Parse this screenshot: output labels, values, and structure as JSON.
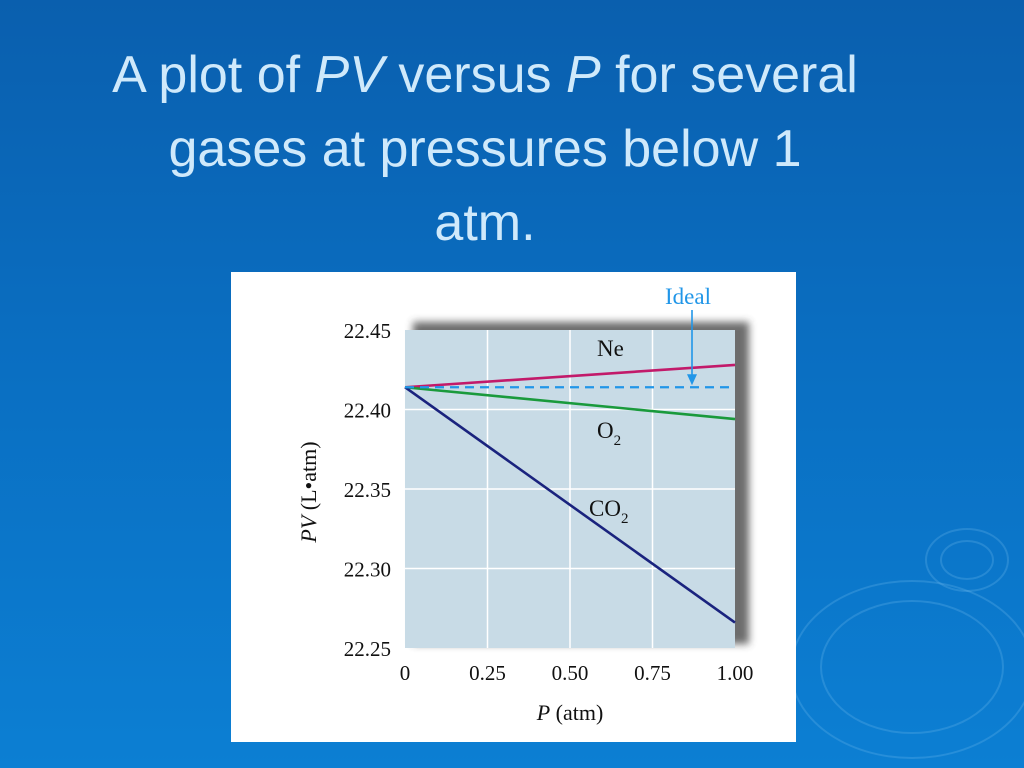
{
  "slide": {
    "title_line1_part1": "A plot of ",
    "title_line1_em1": "PV",
    "title_line1_part2": " versus ",
    "title_line1_em2": "P",
    "title_line1_part3": " for several",
    "title_line2": "gases at pressures below 1",
    "title_line3": "atm."
  },
  "chart_data": {
    "type": "line",
    "xlabel_italic": "P",
    "xlabel_unit": " (atm)",
    "ylabel_italic": "PV",
    "ylabel_unit": " (L•atm)",
    "xlim": [
      0,
      1.0
    ],
    "ylim": [
      22.25,
      22.45
    ],
    "x_ticks": [
      "0",
      "0.25",
      "0.50",
      "0.75",
      "1.00"
    ],
    "x_tick_values": [
      0,
      0.25,
      0.5,
      0.75,
      1.0
    ],
    "y_ticks": [
      "22.45",
      "22.40",
      "22.35",
      "22.30",
      "22.25"
    ],
    "y_tick_values": [
      22.45,
      22.4,
      22.35,
      22.3,
      22.25
    ],
    "grid": true,
    "series": [
      {
        "name": "Ne",
        "label_main": "Ne",
        "label_sub": "",
        "color": "#c21a6a",
        "x": [
          0,
          1.0
        ],
        "y": [
          22.414,
          22.428
        ],
        "dashed": false
      },
      {
        "name": "O2",
        "label_main": "O",
        "label_sub": "2",
        "color": "#1a9a3c",
        "x": [
          0,
          1.0
        ],
        "y": [
          22.414,
          22.394
        ],
        "dashed": false
      },
      {
        "name": "CO2",
        "label_main": "CO",
        "label_sub": "2",
        "color": "#1a237e",
        "x": [
          0,
          1.0
        ],
        "y": [
          22.414,
          22.266
        ],
        "dashed": false
      },
      {
        "name": "Ideal",
        "label_main": "Ideal",
        "label_sub": "",
        "color": "#2196e8",
        "x": [
          0,
          1.0
        ],
        "y": [
          22.414,
          22.414
        ],
        "dashed": true
      }
    ],
    "plot_bg": "#c8dbe6",
    "grid_color": "#ffffff"
  }
}
